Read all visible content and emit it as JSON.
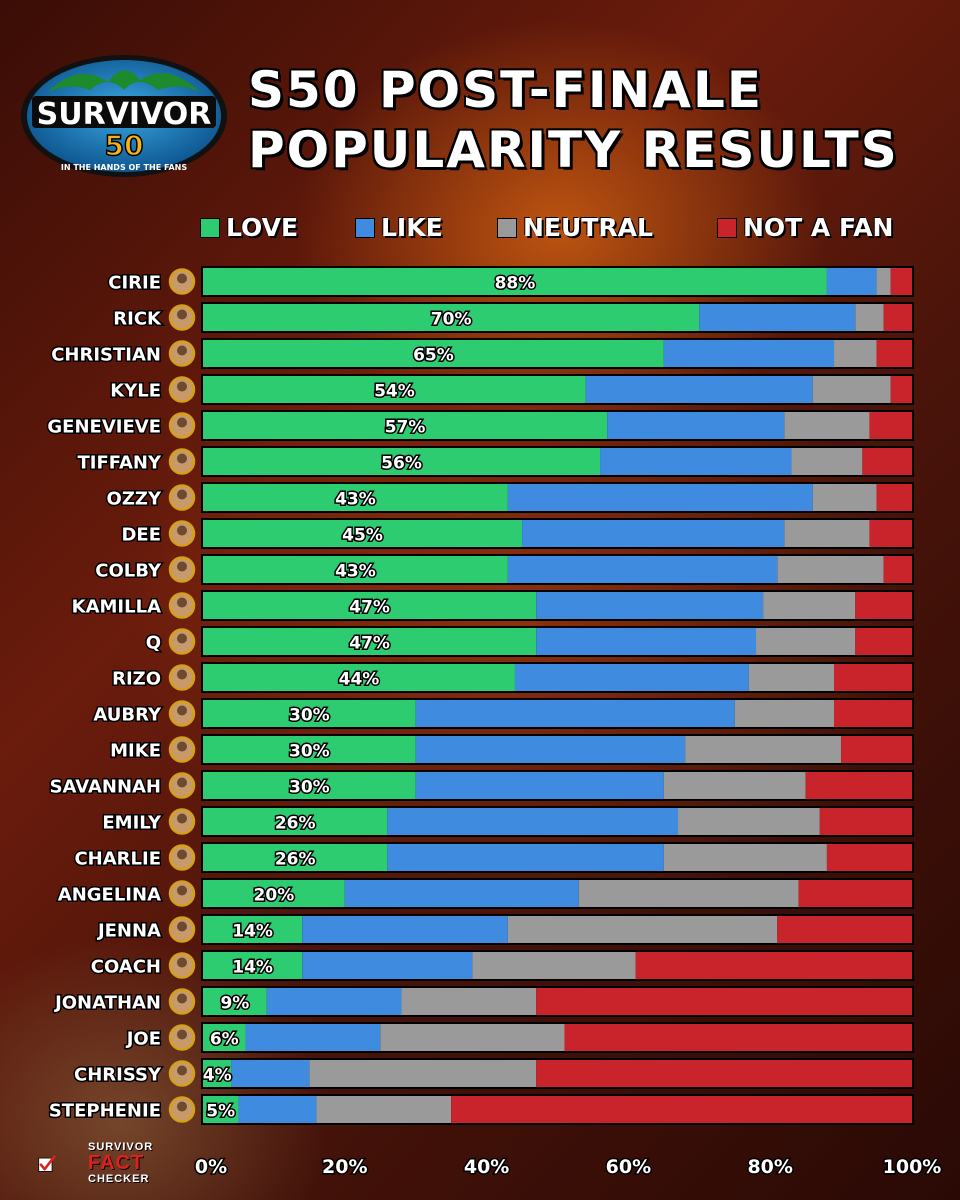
{
  "logo": {
    "text_main": "SURVIVOR",
    "text_number": "50",
    "text_tagline": "IN THE HANDS OF THE FANS"
  },
  "title": {
    "line1": "S50 POST-FINALE",
    "line2": "POPULARITY RESULTS"
  },
  "brand": {
    "line1": "SURVIVOR",
    "line2": "FACT",
    "line3": "CHECKER"
  },
  "colors": {
    "love": "#2ecc71",
    "like": "#3f8be0",
    "neutral": "#9a9a9a",
    "not_a_fan": "#c9232b"
  },
  "chart_data": {
    "type": "bar",
    "orientation": "horizontal",
    "stacked": true,
    "normalized": true,
    "legend_placement": "top",
    "xlim": [
      0,
      100
    ],
    "xticks": [
      "0%",
      "20%",
      "40%",
      "60%",
      "80%",
      "100%"
    ],
    "categories": [
      "CIRIE",
      "RICK",
      "CHRISTIAN",
      "KYLE",
      "GENEVIEVE",
      "TIFFANY",
      "OZZY",
      "DEE",
      "COLBY",
      "KAMILLA",
      "Q",
      "RIZO",
      "AUBRY",
      "MIKE",
      "SAVANNAH",
      "EMILY",
      "CHARLIE",
      "ANGELINA",
      "JENNA",
      "COACH",
      "JONATHAN",
      "JOE",
      "CHRISSY",
      "STEPHENIE"
    ],
    "series": [
      {
        "name": "LOVE",
        "values": [
          88,
          70,
          65,
          54,
          57,
          56,
          43,
          45,
          43,
          47,
          47,
          44,
          30,
          30,
          30,
          26,
          26,
          20,
          14,
          14,
          9,
          6,
          4,
          5
        ]
      },
      {
        "name": "LIKE",
        "values": [
          7,
          22,
          24,
          32,
          25,
          27,
          43,
          37,
          38,
          32,
          31,
          33,
          45,
          38,
          35,
          41,
          39,
          33,
          29,
          24,
          19,
          19,
          11,
          11
        ]
      },
      {
        "name": "NEUTRAL",
        "values": [
          2,
          4,
          6,
          11,
          12,
          10,
          9,
          12,
          15,
          13,
          14,
          12,
          14,
          22,
          20,
          20,
          23,
          31,
          38,
          23,
          19,
          26,
          32,
          19
        ]
      },
      {
        "name": "NOT A FAN",
        "values": [
          3,
          4,
          5,
          3,
          6,
          7,
          5,
          6,
          4,
          8,
          8,
          11,
          11,
          10,
          15,
          13,
          12,
          16,
          19,
          39,
          53,
          49,
          53,
          65
        ]
      }
    ],
    "data_labels": [
      "88%",
      "70%",
      "65%",
      "54%",
      "57%",
      "56%",
      "43%",
      "45%",
      "43%",
      "47%",
      "47%",
      "44%",
      "30%",
      "30%",
      "30%",
      "26%",
      "26%",
      "20%",
      "14%",
      "14%",
      "9%",
      "6%",
      "4%",
      "5%"
    ]
  }
}
